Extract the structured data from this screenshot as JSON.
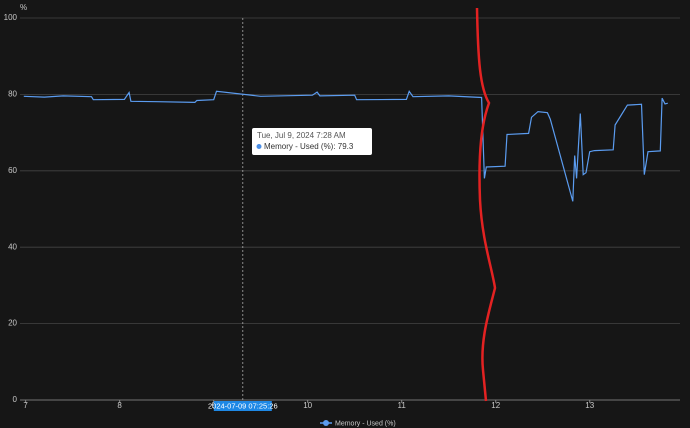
{
  "chart_data": {
    "type": "line",
    "y_label": "%",
    "xlim": [
      6.94,
      13.96
    ],
    "xticks": [
      7,
      8,
      9,
      10,
      11,
      12,
      13
    ],
    "ylim": [
      0,
      100
    ],
    "yticks": [
      0,
      20,
      40,
      60,
      80,
      100
    ],
    "grid": true,
    "x": [
      6.98,
      7.2,
      7.4,
      7.7,
      7.72,
      8.05,
      8.1,
      8.12,
      8.4,
      8.8,
      8.82,
      9.0,
      9.03,
      9.5,
      10.05,
      10.1,
      10.13,
      10.5,
      10.52,
      11.05,
      11.08,
      11.12,
      11.5,
      11.85,
      11.88,
      11.9,
      12.1,
      12.12,
      12.35,
      12.38,
      12.45,
      12.55,
      12.58,
      12.82,
      12.84,
      12.86,
      12.9,
      12.93,
      12.96,
      13.0,
      13.05,
      13.25,
      13.27,
      13.4,
      13.55,
      13.58,
      13.62,
      13.75,
      13.77,
      13.8,
      13.83
    ],
    "series": [
      {
        "name": "Memory - Used (%)",
        "color": "#5b9cf0",
        "values": [
          79.5,
          79.3,
          79.6,
          79.4,
          78.6,
          78.7,
          80.5,
          78.2,
          78.1,
          77.9,
          78.4,
          78.6,
          80.8,
          79.5,
          79.8,
          80.6,
          79.6,
          79.8,
          78.6,
          78.7,
          80.8,
          79.4,
          79.6,
          79.2,
          58,
          61,
          61.2,
          69.5,
          69.8,
          74,
          75.5,
          75.2,
          73.5,
          52,
          64,
          58,
          75,
          59,
          59.5,
          65,
          65.3,
          65.5,
          72,
          77.2,
          77.4,
          59,
          65,
          65.2,
          79,
          77.5,
          77.7
        ]
      }
    ],
    "cursor": {
      "x": 9.31,
      "label": "2024-07-09 07:25:26"
    },
    "tooltip": {
      "title": "Tue, Jul 9, 2024 7:28 AM",
      "text": "Memory - Used (%): 79.3"
    }
  }
}
